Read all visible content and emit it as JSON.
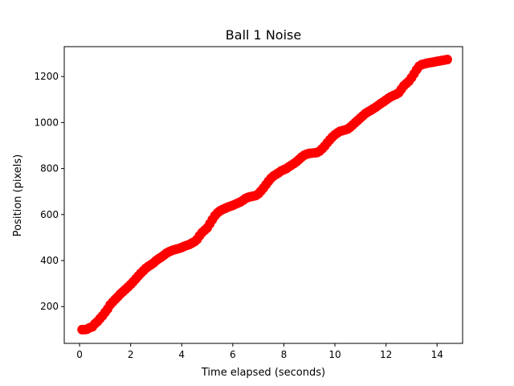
{
  "chart_data": {
    "type": "scatter",
    "title": "Ball 1 Noise",
    "xlabel": "Time elapsed (seconds)",
    "ylabel": "Position (pixels)",
    "xlim": [
      -0.6,
      15.0
    ],
    "ylim": [
      40,
      1330
    ],
    "xticks": [
      0,
      2,
      4,
      6,
      8,
      10,
      12,
      14
    ],
    "yticks": [
      200,
      400,
      600,
      800,
      1000,
      1200
    ],
    "grid": false,
    "marker_color": "#ff0000",
    "series": [
      {
        "points": [
          [
            0.1,
            100
          ],
          [
            0.2,
            100
          ],
          [
            0.3,
            102
          ],
          [
            0.4,
            108
          ],
          [
            0.5,
            112
          ],
          [
            0.6,
            125
          ],
          [
            0.7,
            135
          ],
          [
            0.8,
            148
          ],
          [
            0.9,
            160
          ],
          [
            1.0,
            175
          ],
          [
            1.1,
            190
          ],
          [
            1.2,
            208
          ],
          [
            1.3,
            220
          ],
          [
            1.4,
            232
          ],
          [
            1.5,
            243
          ],
          [
            1.6,
            255
          ],
          [
            1.7,
            265
          ],
          [
            1.8,
            275
          ],
          [
            1.9,
            285
          ],
          [
            2.0,
            296
          ],
          [
            2.1,
            308
          ],
          [
            2.2,
            320
          ],
          [
            2.3,
            333
          ],
          [
            2.4,
            345
          ],
          [
            2.5,
            356
          ],
          [
            2.6,
            367
          ],
          [
            2.7,
            375
          ],
          [
            2.8,
            382
          ],
          [
            2.9,
            390
          ],
          [
            3.0,
            400
          ],
          [
            3.1,
            408
          ],
          [
            3.2,
            415
          ],
          [
            3.3,
            423
          ],
          [
            3.4,
            432
          ],
          [
            3.5,
            438
          ],
          [
            3.6,
            443
          ],
          [
            3.7,
            447
          ],
          [
            3.8,
            450
          ],
          [
            3.9,
            453
          ],
          [
            4.0,
            457
          ],
          [
            4.1,
            462
          ],
          [
            4.2,
            466
          ],
          [
            4.3,
            470
          ],
          [
            4.4,
            476
          ],
          [
            4.5,
            482
          ],
          [
            4.6,
            492
          ],
          [
            4.7,
            508
          ],
          [
            4.8,
            522
          ],
          [
            4.9,
            532
          ],
          [
            5.0,
            542
          ],
          [
            5.1,
            560
          ],
          [
            5.2,
            578
          ],
          [
            5.3,
            595
          ],
          [
            5.4,
            607
          ],
          [
            5.5,
            616
          ],
          [
            5.6,
            622
          ],
          [
            5.7,
            627
          ],
          [
            5.8,
            632
          ],
          [
            5.9,
            636
          ],
          [
            6.0,
            640
          ],
          [
            6.1,
            645
          ],
          [
            6.2,
            650
          ],
          [
            6.3,
            655
          ],
          [
            6.4,
            662
          ],
          [
            6.5,
            670
          ],
          [
            6.6,
            675
          ],
          [
            6.7,
            678
          ],
          [
            6.8,
            680
          ],
          [
            6.9,
            683
          ],
          [
            7.0,
            690
          ],
          [
            7.1,
            702
          ],
          [
            7.2,
            715
          ],
          [
            7.3,
            730
          ],
          [
            7.4,
            745
          ],
          [
            7.5,
            758
          ],
          [
            7.6,
            768
          ],
          [
            7.7,
            775
          ],
          [
            7.8,
            782
          ],
          [
            7.9,
            790
          ],
          [
            8.0,
            795
          ],
          [
            8.1,
            800
          ],
          [
            8.2,
            808
          ],
          [
            8.3,
            815
          ],
          [
            8.4,
            822
          ],
          [
            8.5,
            830
          ],
          [
            8.6,
            840
          ],
          [
            8.7,
            850
          ],
          [
            8.8,
            858
          ],
          [
            8.9,
            863
          ],
          [
            9.0,
            866
          ],
          [
            9.1,
            867
          ],
          [
            9.2,
            868
          ],
          [
            9.3,
            870
          ],
          [
            9.4,
            876
          ],
          [
            9.5,
            886
          ],
          [
            9.6,
            898
          ],
          [
            9.7,
            912
          ],
          [
            9.8,
            925
          ],
          [
            9.9,
            937
          ],
          [
            10.0,
            947
          ],
          [
            10.1,
            955
          ],
          [
            10.2,
            962
          ],
          [
            10.3,
            965
          ],
          [
            10.4,
            968
          ],
          [
            10.5,
            972
          ],
          [
            10.6,
            980
          ],
          [
            10.7,
            990
          ],
          [
            10.8,
            1000
          ],
          [
            10.9,
            1010
          ],
          [
            11.0,
            1020
          ],
          [
            11.1,
            1030
          ],
          [
            11.2,
            1040
          ],
          [
            11.3,
            1047
          ],
          [
            11.4,
            1053
          ],
          [
            11.5,
            1060
          ],
          [
            11.6,
            1067
          ],
          [
            11.7,
            1075
          ],
          [
            11.8,
            1083
          ],
          [
            11.9,
            1090
          ],
          [
            12.0,
            1098
          ],
          [
            12.1,
            1106
          ],
          [
            12.2,
            1113
          ],
          [
            12.3,
            1118
          ],
          [
            12.4,
            1123
          ],
          [
            12.5,
            1130
          ],
          [
            12.6,
            1145
          ],
          [
            12.7,
            1160
          ],
          [
            12.8,
            1170
          ],
          [
            12.9,
            1180
          ],
          [
            13.0,
            1195
          ],
          [
            13.1,
            1212
          ],
          [
            13.2,
            1230
          ],
          [
            13.3,
            1245
          ],
          [
            13.4,
            1252
          ],
          [
            13.5,
            1255
          ],
          [
            13.6,
            1258
          ],
          [
            13.7,
            1260
          ],
          [
            13.8,
            1262
          ],
          [
            13.9,
            1264
          ],
          [
            14.0,
            1266
          ],
          [
            14.1,
            1268
          ],
          [
            14.2,
            1270
          ],
          [
            14.3,
            1272
          ],
          [
            14.4,
            1274
          ]
        ]
      }
    ]
  }
}
